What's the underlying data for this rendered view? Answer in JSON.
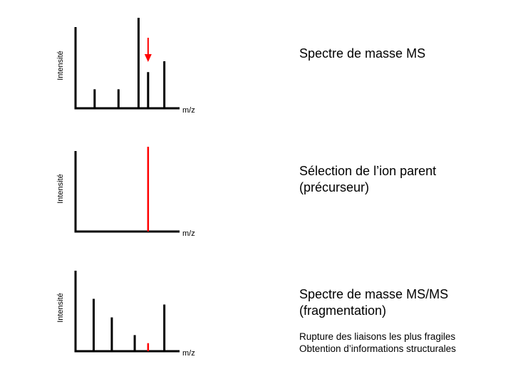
{
  "colors": {
    "axis": "#000000",
    "highlight": "#ff0000"
  },
  "panels": [
    {
      "ylabel": "Intensité",
      "xlabel": "m/z",
      "title_lines": [
        "Spectre de masse MS"
      ],
      "peaks": [
        {
          "x": 0.2,
          "h": 0.21
        },
        {
          "x": 0.45,
          "h": 0.21
        },
        {
          "x": 0.66,
          "h": 1.0
        },
        {
          "x": 0.76,
          "h": 0.4,
          "selected": true
        },
        {
          "x": 0.93,
          "h": 0.52
        }
      ],
      "arrow": true
    },
    {
      "ylabel": "Intensité",
      "xlabel": "m/z",
      "title_lines": [
        "Sélection de l’ion parent",
        "(précurseur)"
      ],
      "peaks": [
        {
          "x": 0.76,
          "h": 1.0,
          "selected": true
        }
      ]
    },
    {
      "ylabel": "Intensité",
      "xlabel": "m/z",
      "title_lines": [
        "Spectre de masse MS/MS",
        "(fragmentation)"
      ],
      "peaks": [
        {
          "x": 0.19,
          "h": 0.65
        },
        {
          "x": 0.38,
          "h": 0.42
        },
        {
          "x": 0.62,
          "h": 0.2
        },
        {
          "x": 0.76,
          "h": 0.1,
          "selected": true
        },
        {
          "x": 0.93,
          "h": 0.58
        }
      ],
      "notes": [
        "Rupture des liaisons les plus fragiles",
        "Obtention d’informations structurales"
      ]
    }
  ]
}
